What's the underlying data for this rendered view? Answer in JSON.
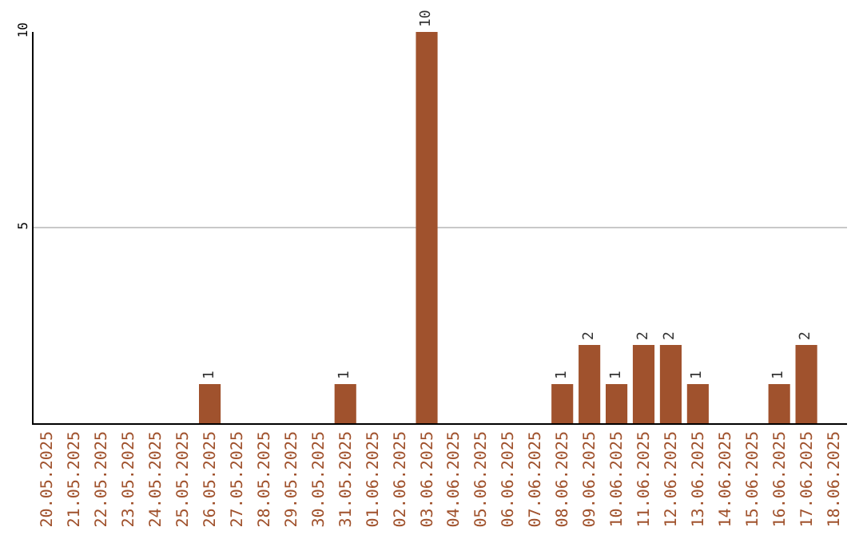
{
  "chart_data": {
    "type": "bar",
    "categories": [
      "20.05.2025",
      "21.05.2025",
      "22.05.2025",
      "23.05.2025",
      "24.05.2025",
      "25.05.2025",
      "26.05.2025",
      "27.05.2025",
      "28.05.2025",
      "29.05.2025",
      "30.05.2025",
      "31.05.2025",
      "01.06.2025",
      "02.06.2025",
      "03.06.2025",
      "04.06.2025",
      "05.06.2025",
      "06.06.2025",
      "07.06.2025",
      "08.06.2025",
      "09.06.2025",
      "10.06.2025",
      "11.06.2025",
      "12.06.2025",
      "13.06.2025",
      "14.06.2025",
      "15.06.2025",
      "16.06.2025",
      "17.06.2025",
      "18.06.2025"
    ],
    "values": [
      0,
      0,
      0,
      0,
      0,
      0,
      1,
      0,
      0,
      0,
      0,
      1,
      0,
      0,
      10,
      0,
      0,
      0,
      0,
      1,
      2,
      1,
      2,
      2,
      1,
      0,
      0,
      1,
      2,
      0
    ],
    "value_labels": [
      null,
      null,
      null,
      null,
      null,
      null,
      "1",
      null,
      null,
      null,
      null,
      "1",
      null,
      null,
      "10",
      null,
      null,
      null,
      null,
      "1",
      "2",
      "1",
      "2",
      "2",
      "1",
      null,
      null,
      "1",
      "2",
      null
    ],
    "color": "#a0522d",
    "ylim": [
      0,
      10
    ],
    "yticks": [
      5,
      10
    ],
    "grid": "y",
    "legend": false
  }
}
